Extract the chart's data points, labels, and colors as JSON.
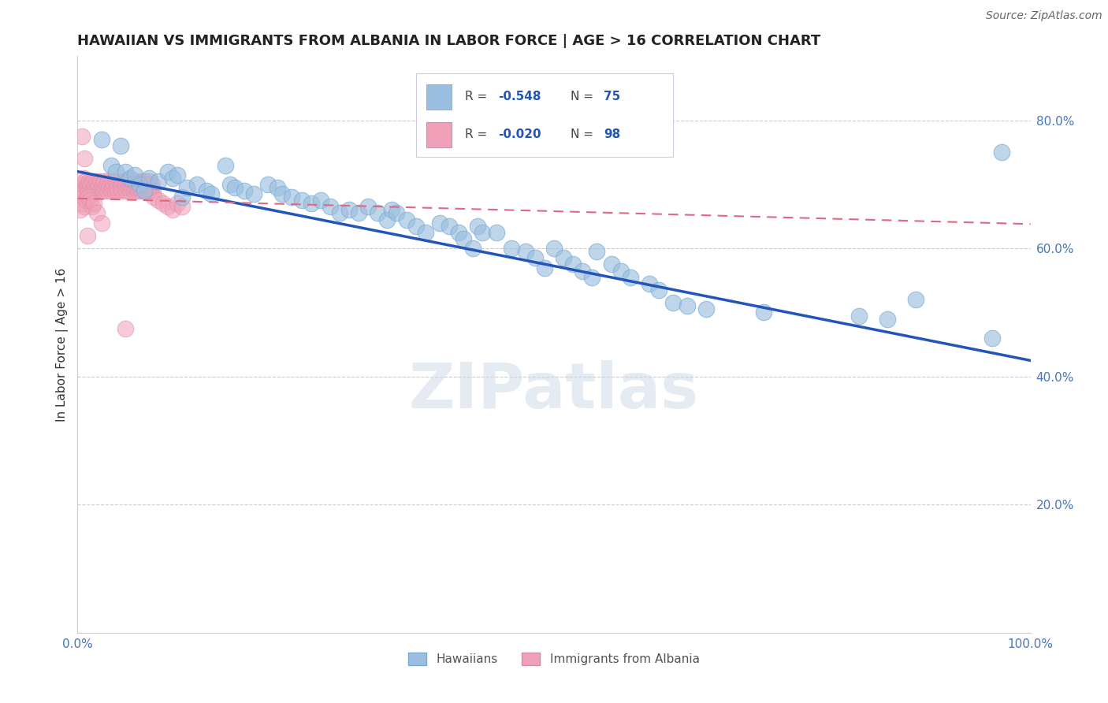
{
  "title": "HAWAIIAN VS IMMIGRANTS FROM ALBANIA IN LABOR FORCE | AGE > 16 CORRELATION CHART",
  "source_text": "Source: ZipAtlas.com",
  "ylabel": "In Labor Force | Age > 16",
  "x_min": 0.0,
  "x_max": 1.0,
  "y_min": 0.0,
  "y_max": 0.9,
  "y_ticks": [
    0.2,
    0.4,
    0.6,
    0.8
  ],
  "y_tick_labels": [
    "20.0%",
    "40.0%",
    "60.0%",
    "80.0%"
  ],
  "x_ticks": [
    0.0,
    0.2,
    0.4,
    0.6,
    0.8,
    1.0
  ],
  "x_tick_labels": [
    "0.0%",
    "",
    "",
    "",
    "",
    "100.0%"
  ],
  "hawaiians_color": "#9bbfe0",
  "albania_color": "#f0a0b8",
  "trend_blue_color": "#2255bb",
  "trend_pink_color": "#e06880",
  "watermark_color": "#ccd8e8",
  "watermark": "ZIPatlas",
  "hawaiians_label": "Hawaiians",
  "albania_label": "Immigrants from Albania",
  "legend_box_color": "#e8eef5",
  "legend_border_color": "#bbccdd",
  "hawaiians_x": [
    0.025,
    0.035,
    0.04,
    0.045,
    0.05,
    0.055,
    0.06,
    0.065,
    0.07,
    0.075,
    0.085,
    0.095,
    0.1,
    0.105,
    0.11,
    0.115,
    0.125,
    0.135,
    0.14,
    0.155,
    0.16,
    0.165,
    0.175,
    0.185,
    0.2,
    0.21,
    0.215,
    0.225,
    0.235,
    0.245,
    0.255,
    0.265,
    0.275,
    0.285,
    0.295,
    0.305,
    0.315,
    0.325,
    0.33,
    0.335,
    0.345,
    0.355,
    0.365,
    0.38,
    0.39,
    0.4,
    0.405,
    0.415,
    0.42,
    0.425,
    0.44,
    0.455,
    0.47,
    0.48,
    0.49,
    0.5,
    0.51,
    0.52,
    0.53,
    0.54,
    0.545,
    0.56,
    0.57,
    0.58,
    0.6,
    0.61,
    0.625,
    0.64,
    0.66,
    0.72,
    0.82,
    0.85,
    0.88,
    0.96,
    0.97
  ],
  "hawaiians_y": [
    0.77,
    0.73,
    0.72,
    0.76,
    0.72,
    0.71,
    0.715,
    0.7,
    0.69,
    0.71,
    0.705,
    0.72,
    0.71,
    0.715,
    0.68,
    0.695,
    0.7,
    0.69,
    0.685,
    0.73,
    0.7,
    0.695,
    0.69,
    0.685,
    0.7,
    0.695,
    0.685,
    0.68,
    0.675,
    0.67,
    0.675,
    0.665,
    0.655,
    0.66,
    0.655,
    0.665,
    0.655,
    0.645,
    0.66,
    0.655,
    0.645,
    0.635,
    0.625,
    0.64,
    0.635,
    0.625,
    0.615,
    0.6,
    0.635,
    0.625,
    0.625,
    0.6,
    0.595,
    0.585,
    0.57,
    0.6,
    0.585,
    0.575,
    0.565,
    0.555,
    0.595,
    0.575,
    0.565,
    0.555,
    0.545,
    0.535,
    0.515,
    0.51,
    0.505,
    0.5,
    0.495,
    0.49,
    0.52,
    0.46,
    0.75
  ],
  "albania_x": [
    0.003,
    0.004,
    0.005,
    0.006,
    0.007,
    0.008,
    0.009,
    0.01,
    0.011,
    0.012,
    0.013,
    0.014,
    0.015,
    0.016,
    0.017,
    0.018,
    0.019,
    0.02,
    0.021,
    0.022,
    0.023,
    0.024,
    0.025,
    0.026,
    0.027,
    0.028,
    0.029,
    0.03,
    0.031,
    0.032,
    0.033,
    0.034,
    0.035,
    0.036,
    0.037,
    0.038,
    0.039,
    0.04,
    0.041,
    0.042,
    0.043,
    0.044,
    0.045,
    0.046,
    0.047,
    0.048,
    0.049,
    0.05,
    0.051,
    0.052,
    0.053,
    0.054,
    0.055,
    0.056,
    0.057,
    0.058,
    0.059,
    0.06,
    0.061,
    0.062,
    0.063,
    0.064,
    0.065,
    0.066,
    0.067,
    0.068,
    0.069,
    0.07,
    0.071,
    0.072,
    0.073,
    0.074,
    0.075,
    0.076,
    0.077,
    0.078,
    0.079,
    0.08,
    0.085,
    0.09,
    0.095,
    0.1,
    0.105,
    0.11,
    0.003,
    0.005,
    0.007,
    0.009,
    0.011,
    0.013,
    0.015,
    0.017,
    0.02,
    0.025,
    0.005,
    0.007,
    0.01,
    0.05
  ],
  "albania_y": [
    0.685,
    0.695,
    0.7,
    0.71,
    0.69,
    0.705,
    0.695,
    0.7,
    0.69,
    0.705,
    0.695,
    0.7,
    0.69,
    0.705,
    0.695,
    0.7,
    0.69,
    0.705,
    0.695,
    0.7,
    0.69,
    0.705,
    0.695,
    0.7,
    0.69,
    0.705,
    0.695,
    0.7,
    0.69,
    0.705,
    0.695,
    0.7,
    0.69,
    0.705,
    0.695,
    0.7,
    0.69,
    0.705,
    0.695,
    0.7,
    0.69,
    0.705,
    0.695,
    0.7,
    0.69,
    0.705,
    0.695,
    0.7,
    0.69,
    0.705,
    0.695,
    0.7,
    0.69,
    0.705,
    0.695,
    0.7,
    0.69,
    0.705,
    0.695,
    0.7,
    0.69,
    0.705,
    0.695,
    0.7,
    0.69,
    0.705,
    0.695,
    0.7,
    0.69,
    0.705,
    0.695,
    0.7,
    0.69,
    0.705,
    0.695,
    0.7,
    0.69,
    0.68,
    0.675,
    0.67,
    0.665,
    0.66,
    0.67,
    0.665,
    0.66,
    0.67,
    0.665,
    0.675,
    0.68,
    0.675,
    0.665,
    0.67,
    0.655,
    0.64,
    0.775,
    0.74,
    0.62,
    0.475
  ],
  "blue_trend_x": [
    0.0,
    1.0
  ],
  "blue_trend_y": [
    0.72,
    0.425
  ],
  "pink_trend_x": [
    0.0,
    1.0
  ],
  "pink_trend_y": [
    0.678,
    0.638
  ]
}
